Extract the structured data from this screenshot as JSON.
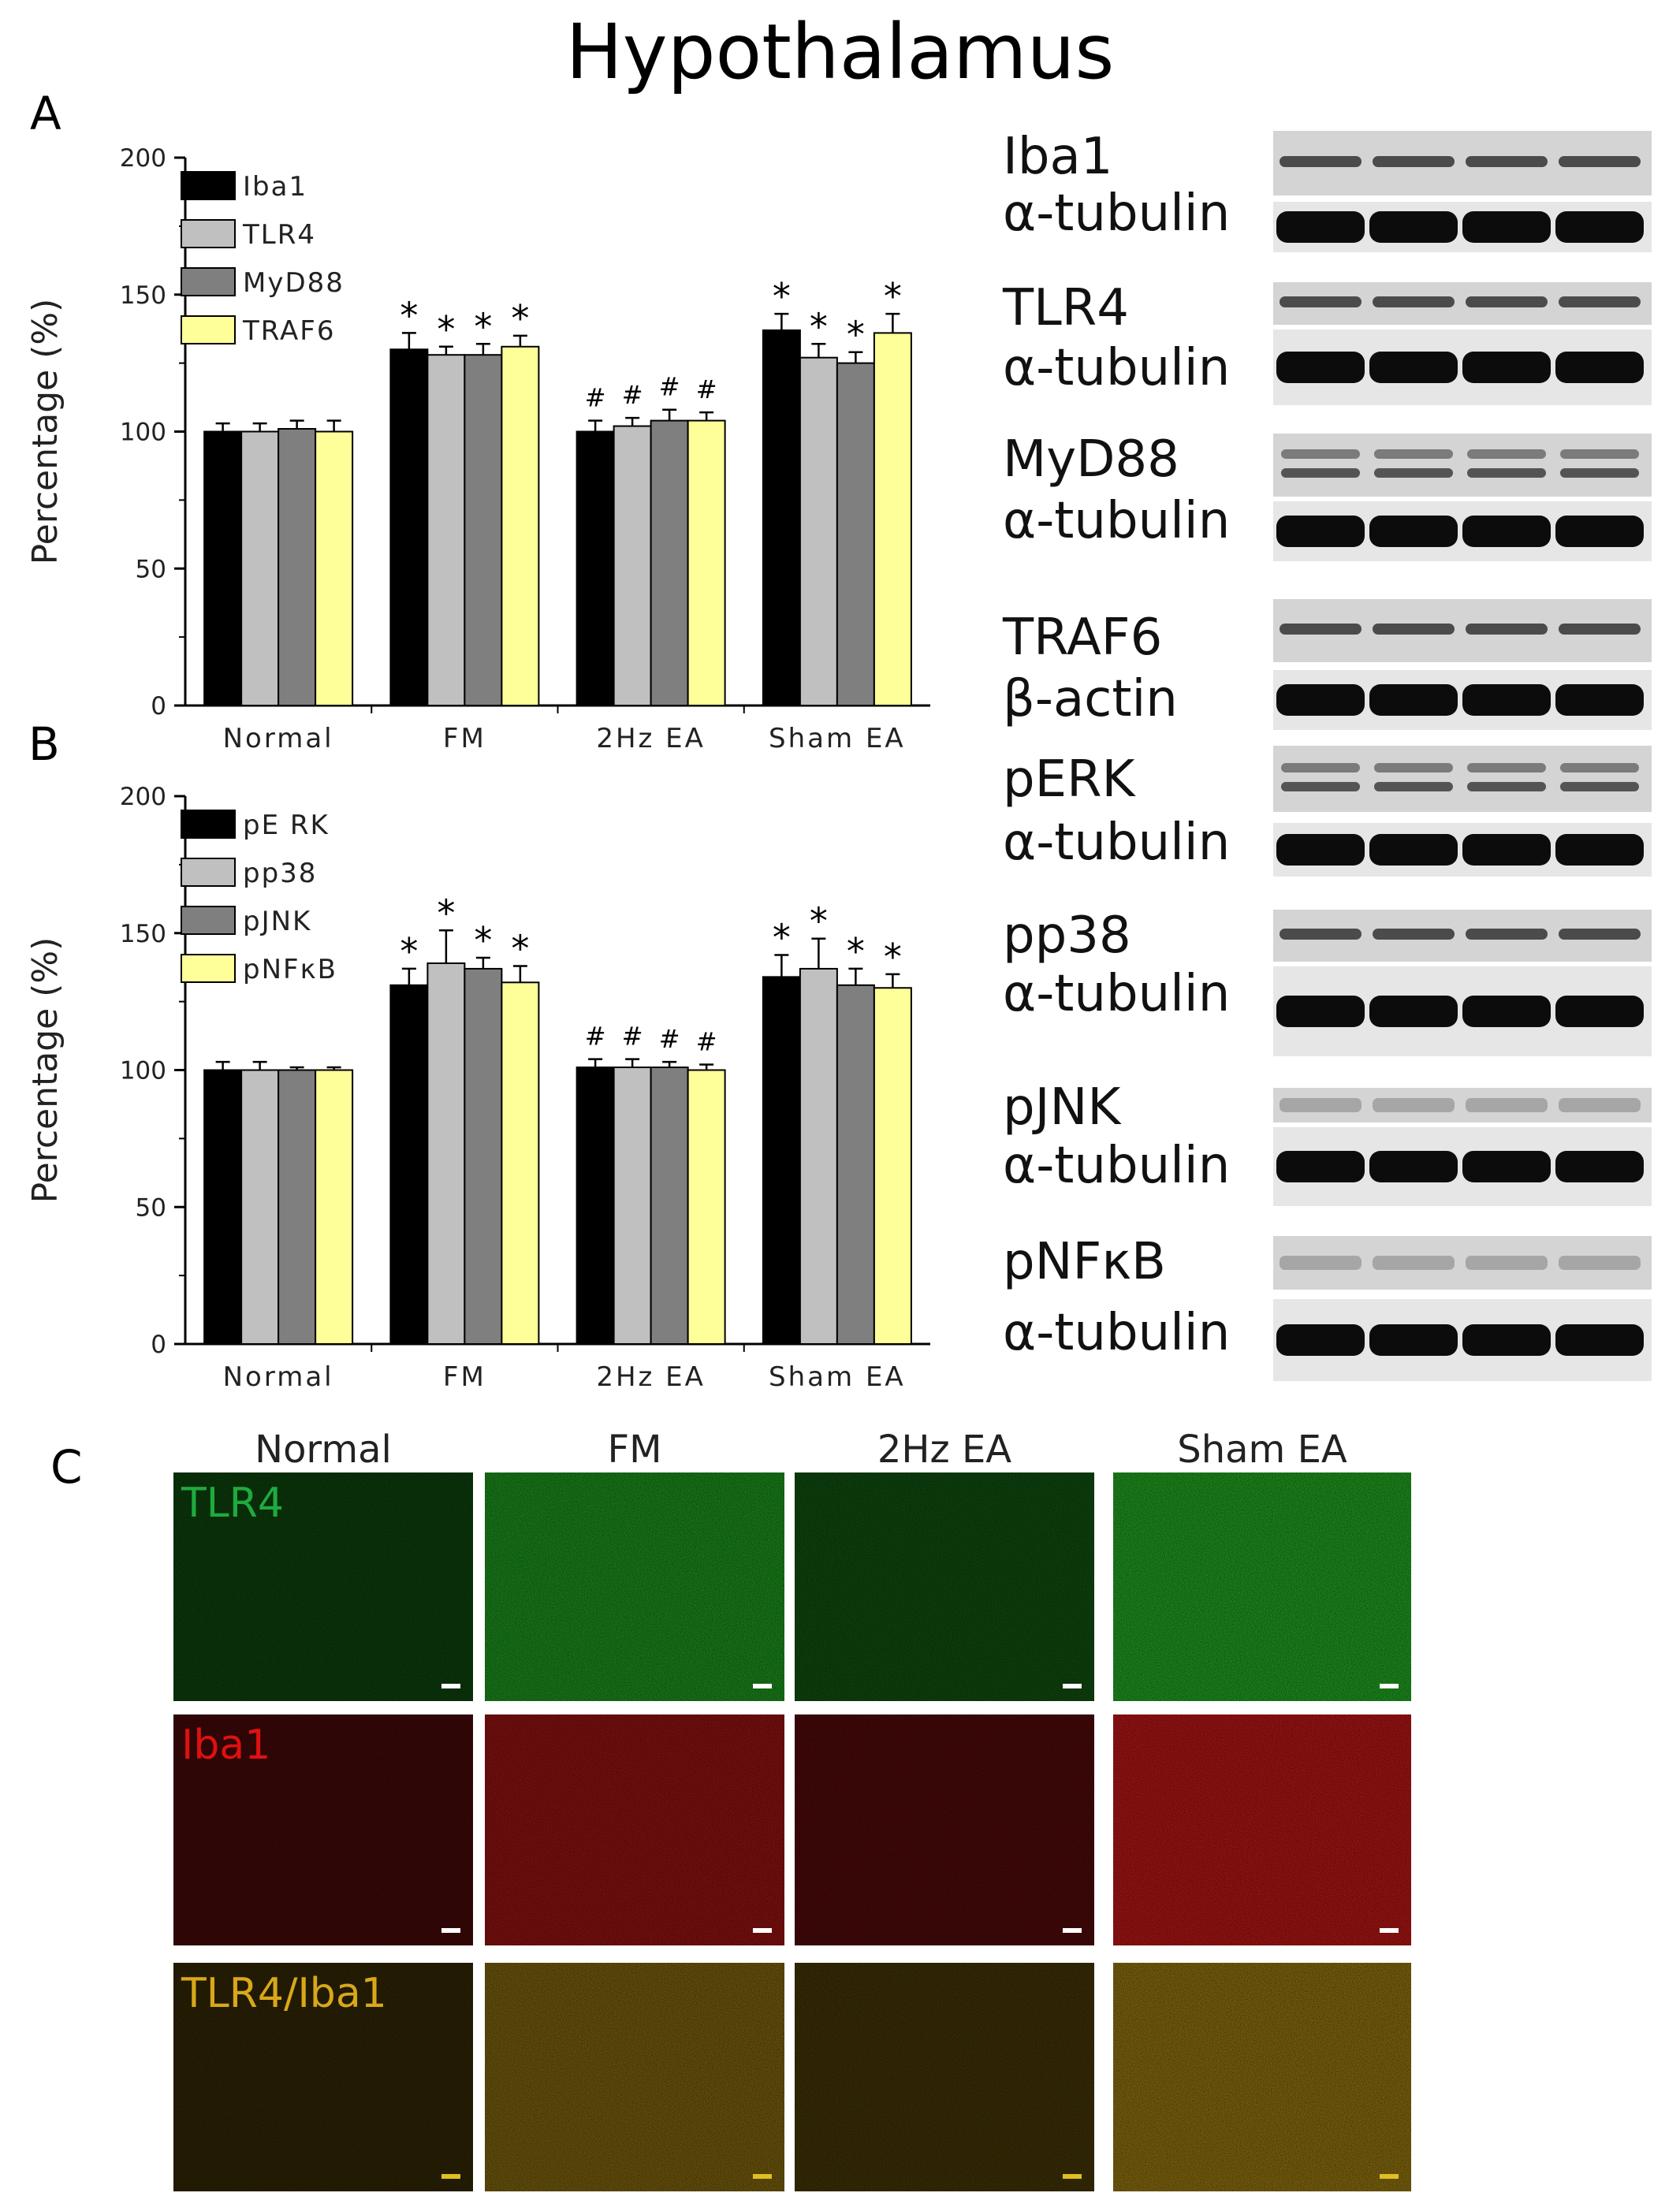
{
  "title": "Hypothalamus",
  "panels": {
    "a": "A",
    "b": "B",
    "c": "C"
  },
  "chart_data": [
    {
      "type": "bar",
      "panel": "A",
      "categories": [
        "Normal",
        "FM",
        "2Hz EA",
        "Sham EA"
      ],
      "ylabel": "Percentage (%)",
      "xlabel": "",
      "ylim": [
        0,
        200
      ],
      "yticks": [
        0,
        50,
        100,
        150,
        200
      ],
      "grid": false,
      "legend_position": "top-left",
      "series": [
        {
          "name": "Iba1",
          "color": "#000000",
          "values": [
            100,
            130,
            100,
            137
          ],
          "errors": [
            3,
            6,
            4,
            6
          ],
          "markers": [
            "",
            "*",
            "#",
            "*"
          ]
        },
        {
          "name": "TLR4",
          "color": "#c0c0c0",
          "values": [
            100,
            128,
            102,
            127
          ],
          "errors": [
            3,
            3,
            3,
            5
          ],
          "markers": [
            "",
            "*",
            "#",
            "*"
          ]
        },
        {
          "name": "MyD88",
          "color": "#7f7f7f",
          "values": [
            101,
            128,
            104,
            125
          ],
          "errors": [
            3,
            4,
            4,
            4
          ],
          "markers": [
            "",
            "*",
            "#",
            "*"
          ]
        },
        {
          "name": "TRAF6",
          "color": "#ffff99",
          "values": [
            100,
            131,
            104,
            136
          ],
          "errors": [
            4,
            4,
            3,
            7
          ],
          "markers": [
            "",
            "*",
            "#",
            "*"
          ]
        }
      ]
    },
    {
      "type": "bar",
      "panel": "B",
      "categories": [
        "Normal",
        "FM",
        "2Hz EA",
        "Sham EA"
      ],
      "ylabel": "Percentage (%)",
      "xlabel": "",
      "ylim": [
        0,
        200
      ],
      "yticks": [
        0,
        50,
        100,
        150,
        200
      ],
      "grid": false,
      "legend_position": "top-left",
      "series": [
        {
          "name": "pE RK",
          "color": "#000000",
          "values": [
            100,
            131,
            101,
            134
          ],
          "errors": [
            3,
            6,
            3,
            8
          ],
          "markers": [
            "",
            "*",
            "#",
            "*"
          ]
        },
        {
          "name": "pp38",
          "color": "#c0c0c0",
          "values": [
            100,
            139,
            101,
            137
          ],
          "errors": [
            3,
            12,
            3,
            11
          ],
          "markers": [
            "",
            "*",
            "#",
            "*"
          ]
        },
        {
          "name": "pJNK",
          "color": "#7f7f7f",
          "values": [
            100,
            137,
            101,
            131
          ],
          "errors": [
            1,
            4,
            2,
            6
          ],
          "markers": [
            "",
            "*",
            "#",
            "*"
          ]
        },
        {
          "name": "pNFκB",
          "color": "#ffff99",
          "values": [
            100,
            132,
            100,
            130
          ],
          "errors": [
            1,
            6,
            2,
            5
          ],
          "markers": [
            "",
            "*",
            "#",
            "*"
          ]
        }
      ]
    }
  ],
  "blots": [
    {
      "top": "Iba1",
      "bottom": "α-tubulin"
    },
    {
      "top": "TLR4",
      "bottom": "α-tubulin"
    },
    {
      "top": "MyD88",
      "bottom": "α-tubulin"
    },
    {
      "top": "TRAF6",
      "bottom": "β-actin"
    },
    {
      "top": "pERK",
      "bottom": "α-tubulin"
    },
    {
      "top": "pp38",
      "bottom": "α-tubulin"
    },
    {
      "top": "pJNK",
      "bottom": "α-tubulin"
    },
    {
      "top": "pNFκB",
      "bottom": "α-tubulin"
    }
  ],
  "immunofluorescence": {
    "columns": [
      "Normal",
      "FM",
      "2Hz EA",
      "Sham EA"
    ],
    "rows": [
      {
        "label": "TLR4",
        "label_color": "#1faa3f",
        "hue": [
          40,
          200,
          40
        ],
        "intensity": [
          0.28,
          0.62,
          0.34,
          0.7
        ]
      },
      {
        "label": "Iba1",
        "label_color": "#e01010",
        "hue": [
          210,
          25,
          25
        ],
        "intensity": [
          0.28,
          0.6,
          0.33,
          0.75
        ]
      },
      {
        "label": "TLR4/Iba1",
        "label_color": "#d9a81a",
        "hue": [
          190,
          150,
          20
        ],
        "intensity": [
          0.22,
          0.55,
          0.3,
          0.65
        ]
      }
    ]
  }
}
